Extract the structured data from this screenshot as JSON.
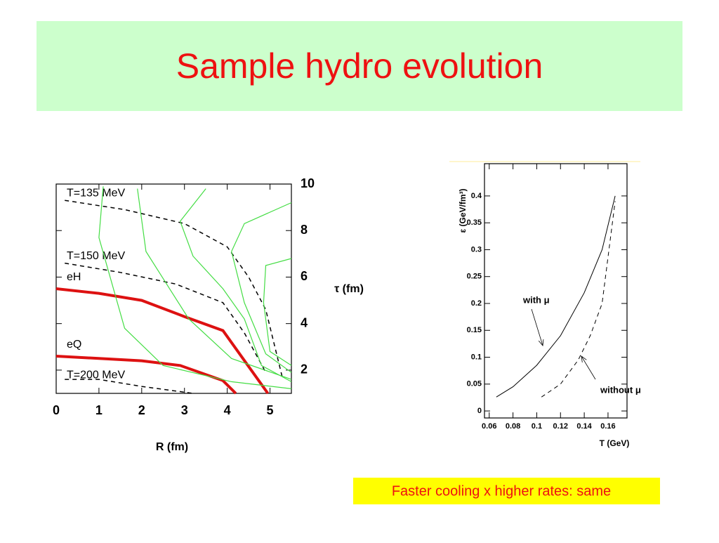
{
  "title": "Sample hydro evolution",
  "caption": "Faster cooling x higher rates: same",
  "chart_data": [
    {
      "type": "line",
      "xlabel": "R (fm)",
      "ylabel": "τ (fm)",
      "xlim": [
        0,
        5.5
      ],
      "ylim": [
        1,
        10
      ],
      "xticks": [
        0,
        1,
        2,
        3,
        4,
        5
      ],
      "yticks": [
        2,
        4,
        6,
        8,
        10
      ],
      "y_axis_side": "right",
      "series": [
        {
          "name": "T=135 MeV",
          "color": "#000000",
          "style": "dashed",
          "line_width": 1.5,
          "x": [
            0.2,
            1.6,
            3.0,
            4.0,
            4.5,
            4.9,
            5.3
          ],
          "values": [
            9.3,
            8.9,
            8.3,
            7.3,
            6.0,
            4.6,
            1.6
          ]
        },
        {
          "name": "T=150 MeV",
          "color": "#000000",
          "style": "dashed",
          "line_width": 1.5,
          "x": [
            0.2,
            1.5,
            2.8,
            3.9,
            4.4,
            4.9
          ],
          "values": [
            6.6,
            6.2,
            5.7,
            4.9,
            3.6,
            1.9
          ]
        },
        {
          "name": "eH",
          "color": "#dd1111",
          "style": "solid",
          "line_width": 4,
          "x": [
            0,
            1,
            2,
            3,
            3.9,
            4.95
          ],
          "values": [
            5.5,
            5.3,
            5.0,
            4.3,
            3.7,
            1.0
          ]
        },
        {
          "name": "eQ",
          "color": "#dd1111",
          "style": "solid",
          "line_width": 4,
          "x": [
            0,
            1,
            2,
            2.9,
            3.9,
            4.2
          ],
          "values": [
            2.6,
            2.5,
            2.4,
            2.2,
            1.55,
            1.0
          ]
        },
        {
          "name": "T=200 MeV",
          "color": "#000000",
          "style": "dashed",
          "line_width": 1.5,
          "x": [
            0.2,
            1.0,
            2.0,
            3.2
          ],
          "values": [
            1.6,
            1.6,
            1.3,
            1.0
          ]
        },
        {
          "color": "#44dd44",
          "style": "solid",
          "line_width": 1.2,
          "x": [
            1.1,
            1.0,
            1.6,
            2.5,
            4.1,
            5.5
          ],
          "values": [
            9.9,
            7.7,
            3.8,
            2.2,
            1.5,
            1.2
          ]
        },
        {
          "color": "#44dd44",
          "style": "solid",
          "line_width": 1.2,
          "x": [
            1.9,
            2.1,
            3.1,
            4.1,
            5.5
          ],
          "values": [
            9.8,
            7.1,
            4.2,
            2.5,
            1.6
          ]
        },
        {
          "color": "#44dd44",
          "style": "solid",
          "line_width": 1.2,
          "x": [
            3.5,
            2.9,
            3.2,
            3.9,
            4.4,
            4.8,
            5.5
          ],
          "values": [
            9.8,
            8.4,
            6.9,
            5.5,
            4.2,
            2.2,
            1.5
          ]
        },
        {
          "color": "#44dd44",
          "style": "solid",
          "line_width": 1.2,
          "x": [
            5.5,
            4.4,
            4.1,
            4.4,
            4.9,
            5.5
          ],
          "values": [
            9.2,
            8.3,
            7.1,
            4.9,
            2.7,
            1.9
          ]
        },
        {
          "color": "#44dd44",
          "style": "solid",
          "line_width": 1.2,
          "x": [
            5.5,
            4.9,
            4.85,
            5.0,
            5.5
          ],
          "values": [
            6.8,
            6.5,
            4.9,
            2.8,
            2.2
          ]
        }
      ]
    },
    {
      "type": "line",
      "xlabel": "T (GeV)",
      "ylabel": "ε (GeV/fm³)",
      "xlim": [
        0.056,
        0.176
      ],
      "ylim": [
        -0.013,
        0.46
      ],
      "xticks": [
        0.06,
        0.08,
        0.1,
        0.12,
        0.14,
        0.16
      ],
      "yticks": [
        0,
        0.05,
        0.1,
        0.15,
        0.2,
        0.25,
        0.3,
        0.35,
        0.4
      ],
      "y_axis_side": "left",
      "series": [
        {
          "name": "with μ",
          "color": "#000000",
          "style": "solid",
          "line_width": 1,
          "x": [
            0.066,
            0.08,
            0.1,
            0.12,
            0.14,
            0.155,
            0.166
          ],
          "values": [
            0.026,
            0.045,
            0.085,
            0.14,
            0.22,
            0.3,
            0.4
          ]
        },
        {
          "name": "without μ",
          "color": "#000000",
          "style": "dashed",
          "line_width": 1,
          "x": [
            0.104,
            0.12,
            0.135,
            0.145,
            0.155,
            0.166
          ],
          "values": [
            0.026,
            0.05,
            0.095,
            0.14,
            0.2,
            0.39
          ]
        }
      ]
    }
  ]
}
